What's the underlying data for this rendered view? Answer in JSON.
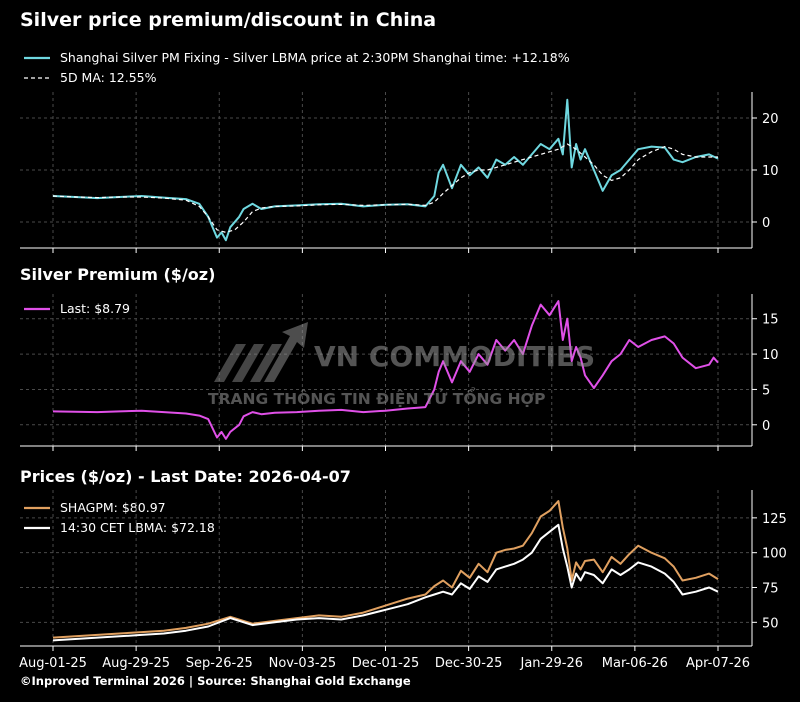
{
  "chart_data": [
    {
      "type": "line",
      "title": "Silver price premium/discount in China",
      "x_ticks": [
        "Aug-01-25",
        "Aug-29-25",
        "Sep-26-25",
        "Nov-03-25",
        "Dec-01-25",
        "Dec-30-25",
        "Jan-29-26",
        "Mar-06-26",
        "Apr-07-26"
      ],
      "y_ticks": [
        0,
        10,
        20
      ],
      "ylim": [
        -5,
        25
      ],
      "series": [
        {
          "name": "Shanghai Silver PM Fixing - Silver LBMA price at 2:30PM Shanghai time: +12.18%",
          "color": "#6fd8e0",
          "x": [
            0,
            5,
            10,
            15,
            20,
            25,
            30,
            33,
            35,
            37,
            38,
            39,
            40,
            42,
            43,
            45,
            47,
            50,
            55,
            60,
            65,
            70,
            75,
            80,
            84,
            86,
            87,
            88,
            90,
            92,
            94,
            96,
            98,
            100,
            102,
            104,
            106,
            108,
            110,
            112,
            114,
            115,
            116,
            117,
            118,
            119,
            120,
            122,
            124,
            126,
            128,
            130,
            132,
            135,
            138,
            140,
            142,
            145,
            148,
            150
          ],
          "values": [
            5,
            4.8,
            4.6,
            4.8,
            5,
            4.7,
            4.4,
            3.5,
            1,
            -3,
            -2,
            -3.5,
            -1,
            1,
            2.5,
            3.5,
            2.5,
            3,
            3.2,
            3.4,
            3.5,
            3,
            3.3,
            3.4,
            3,
            5,
            9.5,
            11,
            6.5,
            11,
            9,
            10.5,
            8.5,
            12,
            11,
            12.5,
            11,
            13,
            15,
            14,
            16,
            13,
            23.5,
            10.5,
            15,
            12,
            14,
            10,
            6,
            9,
            10,
            12,
            14,
            14.5,
            14.3,
            12,
            11.5,
            12.5,
            13,
            12.2
          ]
        },
        {
          "name": "5D MA: 12.55%",
          "color": "#ffffff",
          "dashed": true,
          "x": [
            0,
            5,
            10,
            15,
            20,
            25,
            30,
            33,
            35,
            37,
            39,
            41,
            43,
            45,
            47,
            50,
            55,
            60,
            65,
            70,
            75,
            80,
            84,
            86,
            88,
            90,
            92,
            94,
            96,
            98,
            100,
            102,
            104,
            106,
            108,
            110,
            112,
            114,
            116,
            118,
            120,
            122,
            124,
            126,
            128,
            130,
            132,
            135,
            138,
            140,
            142,
            145,
            148,
            150
          ],
          "values": [
            5,
            4.8,
            4.7,
            4.8,
            4.8,
            4.6,
            4.2,
            3,
            1,
            -1.5,
            -2,
            -1.5,
            0,
            2,
            2.7,
            3,
            3.1,
            3.3,
            3.4,
            3.2,
            3.3,
            3.4,
            3.2,
            3.8,
            5.5,
            7,
            8.5,
            9.5,
            10,
            10,
            10.5,
            11,
            11.5,
            12,
            12.5,
            13,
            13.5,
            14,
            15,
            14,
            12.5,
            11,
            9,
            8,
            8.5,
            10,
            12,
            13.5,
            14.5,
            14,
            13,
            12.5,
            12.5,
            12.5
          ]
        }
      ]
    },
    {
      "type": "line",
      "title": "Silver Premium ($/oz)",
      "x_ticks": [
        "Aug-01-25",
        "Aug-29-25",
        "Sep-26-25",
        "Nov-03-25",
        "Dec-01-25",
        "Dec-30-25",
        "Jan-29-26",
        "Mar-06-26",
        "Apr-07-26"
      ],
      "y_ticks": [
        0,
        5,
        10,
        15
      ],
      "ylim": [
        -3,
        18.5
      ],
      "series": [
        {
          "name": "Last: $8.79",
          "color": "#e050e8",
          "x": [
            0,
            5,
            10,
            15,
            20,
            25,
            30,
            33,
            35,
            37,
            38,
            39,
            40,
            42,
            43,
            45,
            47,
            50,
            55,
            60,
            65,
            70,
            75,
            80,
            84,
            86,
            87,
            88,
            90,
            92,
            94,
            96,
            98,
            100,
            102,
            104,
            106,
            108,
            110,
            112,
            114,
            115,
            116,
            117,
            118,
            119,
            120,
            122,
            124,
            126,
            128,
            130,
            132,
            135,
            138,
            140,
            142,
            145,
            148,
            149,
            150
          ],
          "values": [
            1.9,
            1.85,
            1.8,
            1.9,
            2,
            1.8,
            1.6,
            1.3,
            0.8,
            -1.8,
            -1,
            -2,
            -1,
            0,
            1.2,
            1.8,
            1.5,
            1.7,
            1.8,
            2,
            2.1,
            1.8,
            2,
            2.3,
            2.5,
            5,
            7.5,
            9,
            6,
            9,
            7.5,
            10,
            8.5,
            12,
            10.5,
            12,
            10,
            14,
            17,
            15.5,
            17.5,
            12,
            15,
            9,
            11,
            9.5,
            7,
            5.2,
            7,
            9,
            10,
            12,
            11,
            12,
            12.5,
            11.5,
            9.5,
            8,
            8.5,
            9.5,
            8.79
          ]
        }
      ]
    },
    {
      "type": "line",
      "title": "Prices ($/oz) - Last Date: 2026-04-07",
      "x_ticks": [
        "Aug-01-25",
        "Aug-29-25",
        "Sep-26-25",
        "Nov-03-25",
        "Dec-01-25",
        "Dec-30-25",
        "Jan-29-26",
        "Mar-06-26",
        "Apr-07-26"
      ],
      "y_ticks": [
        50,
        75,
        100,
        125
      ],
      "ylim": [
        33,
        145
      ],
      "series": [
        {
          "name": "SHAGPM: $80.97",
          "color": "#e0a060",
          "x": [
            0,
            5,
            10,
            15,
            20,
            25,
            30,
            35,
            40,
            45,
            50,
            55,
            60,
            65,
            70,
            75,
            80,
            84,
            86,
            88,
            90,
            92,
            94,
            96,
            98,
            100,
            102,
            104,
            106,
            108,
            110,
            112,
            114,
            115,
            116,
            117,
            118,
            119,
            120,
            122,
            124,
            126,
            128,
            130,
            132,
            135,
            138,
            140,
            142,
            145,
            148,
            150
          ],
          "values": [
            39,
            40,
            41,
            42,
            43,
            44,
            46,
            49,
            54,
            49,
            51,
            53,
            55,
            54,
            57,
            62,
            67,
            70,
            76,
            80,
            75,
            87,
            82,
            92,
            86,
            100,
            102,
            103,
            105,
            114,
            126,
            130,
            137,
            118,
            103,
            80,
            93,
            88,
            94,
            95,
            86,
            97,
            92,
            99,
            105,
            100,
            96,
            90,
            80,
            82,
            85,
            81
          ]
        },
        {
          "name": "14:30 CET LBMA: $72.18",
          "color": "#ffffff",
          "x": [
            0,
            5,
            10,
            15,
            20,
            25,
            30,
            35,
            40,
            45,
            50,
            55,
            60,
            65,
            70,
            75,
            80,
            84,
            86,
            88,
            90,
            92,
            94,
            96,
            98,
            100,
            102,
            104,
            106,
            108,
            110,
            112,
            114,
            115,
            116,
            117,
            118,
            119,
            120,
            122,
            124,
            126,
            128,
            130,
            132,
            135,
            138,
            140,
            142,
            145,
            148,
            150
          ],
          "values": [
            37,
            38,
            39,
            40,
            41,
            42,
            44,
            47,
            53,
            48,
            50,
            52,
            53,
            52,
            55,
            59,
            63,
            68,
            70,
            72,
            70,
            78,
            74,
            83,
            79,
            88,
            90,
            92,
            95,
            100,
            110,
            115,
            120,
            103,
            90,
            75,
            85,
            80,
            86,
            84,
            78,
            88,
            84,
            88,
            93,
            90,
            85,
            79,
            70,
            72,
            75,
            72
          ]
        }
      ]
    }
  ],
  "watermark": {
    "brand": "VN COMMODITIES",
    "tagline": "TRANG THÔNG TIN ĐIỆN TỬ TỔNG HỢP"
  },
  "footer": "©Inproved Terminal 2026 | Source: Shanghai Gold Exchange",
  "colors": {
    "background": "#000000",
    "grid": "#4a4a4a",
    "axis": "#ffffff"
  }
}
